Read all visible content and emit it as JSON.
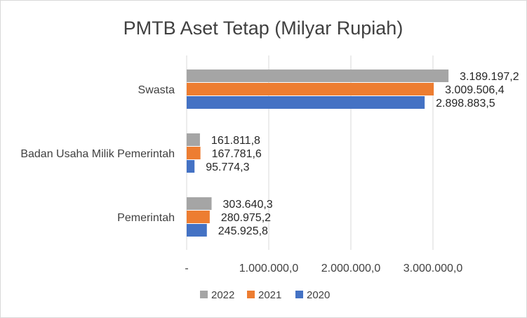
{
  "chart_data": {
    "type": "bar",
    "orientation": "horizontal",
    "title": "PMTB Aset Tetap (Milyar Rupiah)",
    "categories": [
      "Pemerintah",
      "Badan Usaha Milik Pemerintah",
      "Swasta"
    ],
    "series": [
      {
        "name": "2020",
        "color": "#4472c4",
        "values": [
          245925.8,
          95774.3,
          2898883.5
        ],
        "labels": [
          "245.925,8",
          "95.774,3",
          "2.898.883,5"
        ]
      },
      {
        "name": "2021",
        "color": "#ed7d31",
        "values": [
          280975.2,
          167781.6,
          3009506.4
        ],
        "labels": [
          "280.975,2",
          "167.781,6",
          "3.009.506,4"
        ]
      },
      {
        "name": "2022",
        "color": "#a5a5a5",
        "values": [
          303640.3,
          161811.8,
          3189197.2
        ],
        "labels": [
          "303.640,3",
          "161.811,8",
          "3.189.197,2"
        ]
      }
    ],
    "xlim": [
      0,
      4000000
    ],
    "x_ticks": [
      0,
      1000000,
      2000000,
      3000000
    ],
    "x_tick_labels": [
      "-",
      "1.000.000,0",
      "2.000.000,0",
      "3.000.000,0"
    ],
    "legend_order": [
      "2022",
      "2021",
      "2020"
    ],
    "legend_position": "bottom",
    "grid": true,
    "gridline_color": "#d9d9d9"
  }
}
